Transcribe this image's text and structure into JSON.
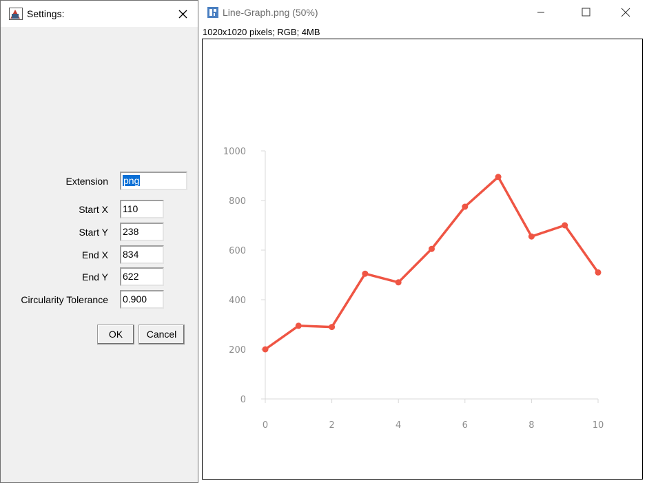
{
  "settings_dialog": {
    "title": "Settings:",
    "fields": [
      {
        "label": "Extension",
        "value": "png"
      },
      {
        "label": "Start X",
        "value": "110"
      },
      {
        "label": "Start Y",
        "value": "238"
      },
      {
        "label": "End X",
        "value": "834"
      },
      {
        "label": "End Y",
        "value": "622"
      },
      {
        "label": "Circularity Tolerance",
        "value": "0.900"
      }
    ],
    "ok_label": "OK",
    "cancel_label": "Cancel"
  },
  "image_window": {
    "title": "Line-Graph.png (50%)",
    "info": "1020x1020 pixels; RGB; 4MB"
  },
  "colors": {
    "line": "#ef5544",
    "axis": "#d8d8d8",
    "tick_text": "#8d8d8d",
    "selection": "#0a6fd6"
  },
  "chart_data": {
    "type": "line",
    "x": [
      0,
      1,
      2,
      3,
      4,
      5,
      6,
      7,
      8,
      9,
      10
    ],
    "series": [
      {
        "values": [
          200,
          295,
          290,
          505,
          470,
          605,
          775,
          895,
          655,
          700,
          510
        ]
      }
    ],
    "x_ticks": [
      "0",
      "2",
      "4",
      "6",
      "8",
      "10"
    ],
    "y_ticks": [
      "0",
      "200",
      "400",
      "600",
      "800",
      "1000"
    ],
    "xlim": [
      0,
      10
    ],
    "ylim": [
      0,
      1000
    ],
    "grid": false,
    "markers": true
  }
}
